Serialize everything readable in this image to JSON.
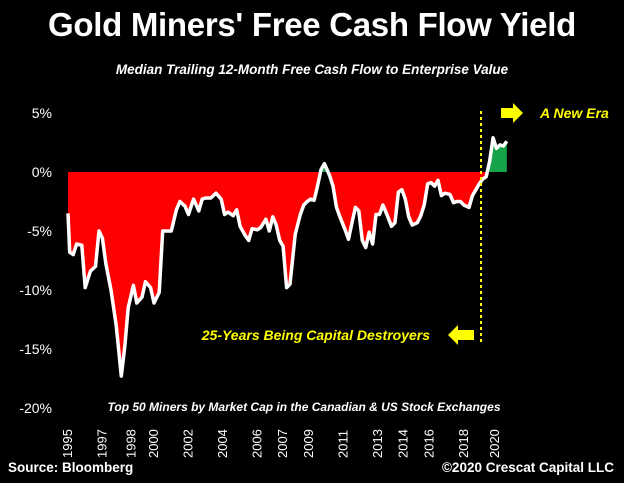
{
  "header": {
    "title": "Gold Miners' Free Cash Flow Yield",
    "subtitle": "Median Trailing 12-Month Free Cash Flow to Enterprise Value"
  },
  "footer": {
    "source": "Source: Bloomberg",
    "copyright": "©2020 Crescat Capital LLC"
  },
  "colors": {
    "negative_fill": "#ff0000",
    "positive_fill": "#16a34a",
    "line": "#ffffff",
    "annotation": "#ffff00",
    "background": "#000000"
  },
  "chart_data": {
    "type": "area",
    "title": "Gold Miners' Free Cash Flow Yield",
    "subtitle": "Median Trailing 12-Month Free Cash Flow to Enterprise Value",
    "ylim": [
      -20,
      5
    ],
    "xlim": [
      1995,
      2020.8
    ],
    "y_ticks": [
      {
        "value": 5,
        "label": "5%"
      },
      {
        "value": 0,
        "label": "0%"
      },
      {
        "value": -5,
        "label": "-5%"
      },
      {
        "value": -10,
        "label": "-10%"
      },
      {
        "value": -15,
        "label": "-15%"
      },
      {
        "value": -20,
        "label": "-20%"
      }
    ],
    "x_ticks": [
      {
        "value": 1995,
        "label": "1995"
      },
      {
        "value": 1997,
        "label": "1997"
      },
      {
        "value": 1998.7,
        "label": "1998"
      },
      {
        "value": 2000,
        "label": "2000"
      },
      {
        "value": 2002,
        "label": "2002"
      },
      {
        "value": 2004,
        "label": "2004"
      },
      {
        "value": 2006,
        "label": "2006"
      },
      {
        "value": 2007.5,
        "label": "2007"
      },
      {
        "value": 2009,
        "label": "2009"
      },
      {
        "value": 2011,
        "label": "2011"
      },
      {
        "value": 2013,
        "label": "2013"
      },
      {
        "value": 2014.5,
        "label": "2014"
      },
      {
        "value": 2016,
        "label": "2016"
      },
      {
        "value": 2018,
        "label": "2018"
      },
      {
        "value": 2019.8,
        "label": "2020"
      }
    ],
    "grid": false,
    "divider_x": 2019.0,
    "annotations": [
      {
        "text": "A New Era",
        "arrow": "right",
        "anchor": "top-right"
      },
      {
        "text": "25-Years Being Capital Destroyers",
        "arrow": "left",
        "anchor": "bottom-center"
      }
    ],
    "note": "Top 50 Miners by Market Cap in the Canadian & US Stock Exchanges",
    "points": [
      [
        1995.0,
        -3.5
      ],
      [
        1995.1,
        -6.8
      ],
      [
        1995.3,
        -7.0
      ],
      [
        1995.5,
        -6.1
      ],
      [
        1995.8,
        -6.2
      ],
      [
        1996.0,
        -9.8
      ],
      [
        1996.3,
        -8.4
      ],
      [
        1996.6,
        -8.0
      ],
      [
        1996.8,
        -5.0
      ],
      [
        1997.0,
        -5.6
      ],
      [
        1997.2,
        -7.8
      ],
      [
        1997.5,
        -10.0
      ],
      [
        1997.8,
        -13.0
      ],
      [
        1998.1,
        -17.3
      ],
      [
        1998.3,
        -14.8
      ],
      [
        1998.5,
        -11.5
      ],
      [
        1998.8,
        -9.6
      ],
      [
        1999.0,
        -11.1
      ],
      [
        1999.3,
        -10.6
      ],
      [
        1999.5,
        -9.3
      ],
      [
        1999.8,
        -9.8
      ],
      [
        2000.0,
        -11.1
      ],
      [
        2000.3,
        -10.2
      ],
      [
        2000.5,
        -5.0
      ],
      [
        2000.8,
        -5.0
      ],
      [
        2001.0,
        -5.0
      ],
      [
        2001.3,
        -3.2
      ],
      [
        2001.5,
        -2.5
      ],
      [
        2001.8,
        -2.9
      ],
      [
        2002.0,
        -3.6
      ],
      [
        2002.3,
        -2.3
      ],
      [
        2002.6,
        -3.3
      ],
      [
        2002.8,
        -2.3
      ],
      [
        2003.0,
        -2.2
      ],
      [
        2003.3,
        -2.2
      ],
      [
        2003.6,
        -1.8
      ],
      [
        2003.9,
        -2.3
      ],
      [
        2004.1,
        -3.6
      ],
      [
        2004.3,
        -3.4
      ],
      [
        2004.6,
        -3.7
      ],
      [
        2004.8,
        -3.2
      ],
      [
        2005.0,
        -4.6
      ],
      [
        2005.3,
        -5.4
      ],
      [
        2005.5,
        -5.8
      ],
      [
        2005.7,
        -4.8
      ],
      [
        2006.0,
        -4.9
      ],
      [
        2006.2,
        -4.7
      ],
      [
        2006.5,
        -4.0
      ],
      [
        2006.7,
        -5.0
      ],
      [
        2006.9,
        -3.8
      ],
      [
        2007.1,
        -4.5
      ],
      [
        2007.3,
        -5.8
      ],
      [
        2007.5,
        -6.3
      ],
      [
        2007.7,
        -9.8
      ],
      [
        2007.9,
        -9.5
      ],
      [
        2008.2,
        -5.3
      ],
      [
        2008.5,
        -3.6
      ],
      [
        2008.7,
        -2.8
      ],
      [
        2008.9,
        -2.5
      ],
      [
        2009.1,
        -2.3
      ],
      [
        2009.3,
        -2.4
      ],
      [
        2009.5,
        -1.2
      ],
      [
        2009.7,
        0.2
      ],
      [
        2009.9,
        0.7
      ],
      [
        2010.2,
        -0.3
      ],
      [
        2010.4,
        -1.2
      ],
      [
        2010.6,
        -3.0
      ],
      [
        2010.8,
        -3.8
      ],
      [
        2011.1,
        -4.9
      ],
      [
        2011.3,
        -5.7
      ],
      [
        2011.5,
        -4.3
      ],
      [
        2011.7,
        -3.0
      ],
      [
        2011.9,
        -3.3
      ],
      [
        2012.1,
        -5.8
      ],
      [
        2012.3,
        -6.4
      ],
      [
        2012.5,
        -5.1
      ],
      [
        2012.7,
        -6.1
      ],
      [
        2012.9,
        -3.6
      ],
      [
        2013.1,
        -3.6
      ],
      [
        2013.3,
        -2.8
      ],
      [
        2013.5,
        -3.5
      ],
      [
        2013.8,
        -4.6
      ],
      [
        2014.0,
        -4.3
      ],
      [
        2014.2,
        -1.7
      ],
      [
        2014.4,
        -1.5
      ],
      [
        2014.6,
        -2.3
      ],
      [
        2014.8,
        -3.8
      ],
      [
        2015.0,
        -4.5
      ],
      [
        2015.3,
        -4.3
      ],
      [
        2015.5,
        -3.7
      ],
      [
        2015.7,
        -2.8
      ],
      [
        2015.9,
        -1.0
      ],
      [
        2016.1,
        -0.9
      ],
      [
        2016.3,
        -1.2
      ],
      [
        2016.5,
        -0.7
      ],
      [
        2016.7,
        -2.0
      ],
      [
        2016.9,
        -1.8
      ],
      [
        2017.2,
        -1.9
      ],
      [
        2017.4,
        -2.6
      ],
      [
        2017.6,
        -2.5
      ],
      [
        2017.8,
        -2.5
      ],
      [
        2018.0,
        -2.8
      ],
      [
        2018.3,
        -3.0
      ],
      [
        2018.5,
        -2.0
      ],
      [
        2018.7,
        -1.5
      ],
      [
        2018.9,
        -1.0
      ],
      [
        2019.1,
        -0.6
      ],
      [
        2019.3,
        -0.4
      ],
      [
        2019.5,
        0.9
      ],
      [
        2019.7,
        2.9
      ],
      [
        2019.9,
        2.0
      ],
      [
        2020.1,
        2.3
      ],
      [
        2020.3,
        2.2
      ],
      [
        2020.5,
        2.6
      ]
    ]
  }
}
